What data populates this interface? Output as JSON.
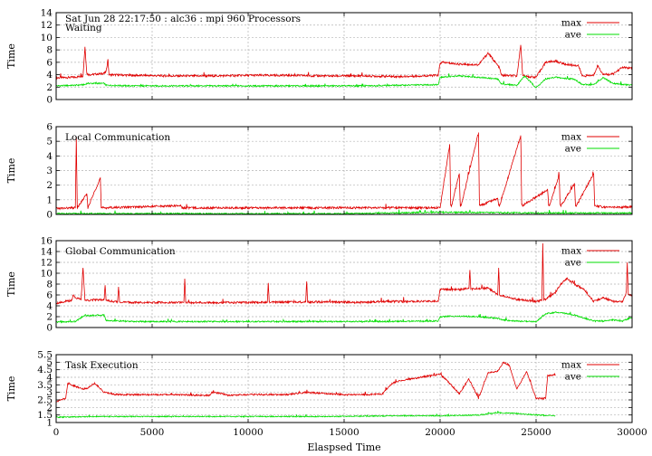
{
  "figure_title": "Sat Jun 28 22:17:50 : alc36 : mpi 960 Processors",
  "chart_data": [
    {
      "type": "line",
      "title": "Waiting",
      "ylabel": "Time",
      "xlabel": "",
      "xlim": [
        0,
        30000
      ],
      "ylim": [
        0,
        14
      ],
      "yticks": [
        0,
        2,
        4,
        6,
        8,
        10,
        12,
        14
      ],
      "xticks": [
        0,
        5000,
        10000,
        15000,
        20000,
        25000,
        30000
      ],
      "show_x_tick_labels": false,
      "grid": true,
      "legend": "top-right",
      "colors": {
        "max": "#e00000",
        "ave": "#00dd00"
      },
      "series": [
        {
          "name": "max",
          "x": [
            0,
            1000,
            1400,
            1500,
            1600,
            1700,
            2500,
            2600,
            2700,
            2750,
            4000,
            6000,
            8000,
            10000,
            12000,
            14000,
            16000,
            18000,
            19000,
            19900,
            20000,
            20100,
            21000,
            22000,
            22500,
            23000,
            23100,
            23200,
            24000,
            24200,
            24300,
            24400,
            24500,
            25000,
            25500,
            26000,
            26500,
            27000,
            27200,
            27400,
            28000,
            28200,
            28500,
            29000,
            29500,
            30000
          ],
          "values": [
            3.5,
            3.6,
            3.8,
            8.5,
            4.2,
            4.0,
            4.2,
            4.5,
            6.5,
            4.0,
            3.9,
            3.8,
            3.8,
            3.9,
            3.9,
            3.8,
            3.8,
            3.7,
            3.8,
            3.9,
            5.8,
            6.0,
            5.7,
            5.6,
            7.5,
            5.5,
            5.0,
            3.9,
            3.8,
            8.8,
            4.0,
            3.8,
            3.7,
            3.6,
            6.0,
            6.2,
            5.7,
            5.5,
            5.5,
            3.8,
            3.9,
            5.5,
            4.0,
            4.1,
            5.2,
            5.0
          ]
        },
        {
          "name": "ave",
          "x": [
            0,
            1000,
            1500,
            1600,
            2500,
            2600,
            4000,
            8000,
            12000,
            16000,
            18000,
            19900,
            20000,
            21000,
            22000,
            23000,
            23200,
            24000,
            24400,
            25000,
            25500,
            26000,
            26500,
            27000,
            27400,
            28000,
            28500,
            29000,
            30000
          ],
          "values": [
            2.2,
            2.3,
            2.4,
            2.6,
            2.6,
            2.3,
            2.2,
            2.2,
            2.2,
            2.2,
            2.3,
            2.4,
            3.6,
            3.8,
            3.6,
            3.3,
            2.5,
            2.3,
            3.8,
            1.9,
            3.3,
            3.6,
            3.4,
            3.3,
            2.4,
            2.4,
            3.5,
            2.6,
            2.3
          ]
        }
      ]
    },
    {
      "type": "line",
      "title": "Local Communication",
      "ylabel": "Time",
      "xlabel": "",
      "xlim": [
        0,
        30000
      ],
      "ylim": [
        0,
        6
      ],
      "yticks": [
        0,
        1,
        2,
        3,
        4,
        5,
        6
      ],
      "xticks": [
        0,
        5000,
        10000,
        15000,
        20000,
        25000,
        30000
      ],
      "show_x_tick_labels": false,
      "grid": true,
      "legend": "top-right",
      "colors": {
        "max": "#e00000",
        "ave": "#00dd00"
      },
      "series": [
        {
          "name": "max",
          "x": [
            0,
            1000,
            1050,
            1100,
            1600,
            1650,
            2300,
            2350,
            2400,
            6500,
            6550,
            6600,
            20000,
            20500,
            20550,
            20600,
            21000,
            21050,
            21100,
            22000,
            22050,
            22100,
            23000,
            23050,
            23100,
            24200,
            24250,
            24300,
            25600,
            25650,
            25700,
            26200,
            26250,
            26300,
            27000,
            27050,
            27100,
            28000,
            28050,
            28100,
            28500,
            28550,
            28600,
            29000,
            30000
          ],
          "values": [
            0.4,
            0.45,
            5.3,
            0.45,
            1.4,
            0.45,
            2.5,
            0.45,
            0.45,
            0.6,
            0.45,
            0.45,
            0.45,
            4.8,
            0.6,
            0.6,
            2.8,
            0.6,
            0.6,
            5.6,
            0.6,
            0.6,
            1.1,
            0.6,
            0.6,
            5.4,
            0.7,
            0.6,
            1.7,
            0.6,
            0.6,
            2.7,
            0.7,
            0.6,
            2.1,
            0.6,
            0.6,
            2.8,
            0.6,
            0.6,
            0.5,
            0.5,
            0.5,
            0.5,
            0.5
          ]
        },
        {
          "name": "ave",
          "x": [
            0,
            5000,
            10000,
            15000,
            20000,
            25000,
            30000
          ],
          "values": [
            0.05,
            0.05,
            0.05,
            0.05,
            0.15,
            0.1,
            0.1
          ]
        }
      ]
    },
    {
      "type": "line",
      "title": "Global Communication",
      "ylabel": "Time",
      "xlabel": "",
      "xlim": [
        0,
        30000
      ],
      "ylim": [
        0,
        16
      ],
      "yticks": [
        0,
        2,
        4,
        6,
        8,
        10,
        12,
        14,
        16
      ],
      "xticks": [
        0,
        5000,
        10000,
        15000,
        20000,
        25000,
        30000
      ],
      "show_x_tick_labels": false,
      "grid": true,
      "legend": "top-right",
      "colors": {
        "max": "#e00000",
        "ave": "#00dd00"
      },
      "series": [
        {
          "name": "max",
          "x": [
            0,
            800,
            900,
            1000,
            1300,
            1400,
            1500,
            2500,
            2550,
            2600,
            3200,
            3250,
            3300,
            4000,
            6000,
            6650,
            6700,
            6750,
            8000,
            10000,
            11000,
            11050,
            11100,
            13000,
            13050,
            13100,
            15000,
            16000,
            17000,
            18000,
            19900,
            20000,
            21000,
            21500,
            21550,
            21600,
            22500,
            23000,
            23050,
            23100,
            24000,
            25000,
            25300,
            25350,
            25400,
            26000,
            26300,
            26600,
            27000,
            27500,
            28000,
            28500,
            29000,
            29500,
            29700,
            29750,
            29800,
            30000
          ],
          "values": [
            4.5,
            5.0,
            6.0,
            5.5,
            5.2,
            11.0,
            5.0,
            5.2,
            7.8,
            5.0,
            4.7,
            7.5,
            4.7,
            4.6,
            4.6,
            4.6,
            9.0,
            4.6,
            4.6,
            4.6,
            4.7,
            8.2,
            4.7,
            4.7,
            8.5,
            4.7,
            4.7,
            4.6,
            4.8,
            4.8,
            4.8,
            7.0,
            7.0,
            7.2,
            10.6,
            7.1,
            7.3,
            6.0,
            11.0,
            6.0,
            5.2,
            4.8,
            5.0,
            15.5,
            5.0,
            6.5,
            8.0,
            9.0,
            8.0,
            7.0,
            4.8,
            5.5,
            4.8,
            4.7,
            6.5,
            12.0,
            6.0,
            6.0
          ]
        },
        {
          "name": "ave",
          "x": [
            0,
            1000,
            1500,
            1600,
            2500,
            2600,
            4000,
            8000,
            12000,
            16000,
            19900,
            20000,
            21000,
            22000,
            23000,
            23200,
            24000,
            25000,
            25500,
            26000,
            26500,
            27000,
            28000,
            28500,
            29000,
            29500,
            30000
          ],
          "values": [
            1.0,
            1.1,
            2.3,
            2.2,
            2.3,
            1.3,
            1.1,
            1.1,
            1.1,
            1.1,
            1.2,
            2.0,
            2.1,
            2.0,
            1.7,
            1.4,
            1.2,
            1.1,
            2.5,
            2.8,
            2.6,
            2.3,
            1.2,
            1.2,
            1.4,
            1.2,
            1.9
          ]
        }
      ]
    },
    {
      "type": "line",
      "title": "Task Execution",
      "ylabel": "Time",
      "xlabel": "Elaspsed Time",
      "xlim": [
        0,
        30000
      ],
      "ylim": [
        1,
        5.5
      ],
      "yticks": [
        1,
        1.5,
        2,
        2.5,
        3,
        3.5,
        4,
        4.5,
        5,
        5.5
      ],
      "ytick_labels": [
        "1",
        "1.5",
        "2",
        "2.5",
        "3",
        "3.5",
        "4",
        "4.5",
        "5",
        "5.5"
      ],
      "xticks": [
        0,
        5000,
        10000,
        15000,
        20000,
        25000,
        30000
      ],
      "xtick_labels": [
        "0",
        "5000",
        "10000",
        "15000",
        "20000",
        "25000",
        "30000"
      ],
      "show_x_tick_labels": true,
      "grid": true,
      "legend": "top-right",
      "colors": {
        "max": "#e00000",
        "ave": "#00dd00"
      },
      "series": [
        {
          "name": "max",
          "x": [
            0,
            500,
            600,
            1000,
            1500,
            2000,
            2100,
            2500,
            3000,
            3100,
            4000,
            6000,
            8000,
            8100,
            8500,
            9000,
            10000,
            12000,
            13000,
            15000,
            16000,
            17000,
            17500,
            18000,
            18500,
            19000,
            19500,
            20000,
            20500,
            21000,
            21500,
            22000,
            22500,
            23000,
            23300,
            23600,
            24000,
            24500,
            25000,
            25500,
            25600,
            26000
          ],
          "values": [
            2.4,
            2.6,
            3.6,
            3.4,
            3.2,
            3.6,
            3.5,
            3.0,
            2.9,
            2.85,
            2.85,
            2.85,
            2.8,
            3.0,
            2.95,
            2.8,
            2.85,
            2.85,
            3.0,
            2.85,
            2.85,
            2.9,
            3.6,
            3.8,
            3.9,
            4.0,
            4.1,
            4.2,
            3.6,
            2.9,
            3.9,
            2.6,
            4.3,
            4.4,
            5.0,
            4.8,
            3.2,
            4.4,
            2.6,
            2.6,
            4.1,
            4.2
          ]
        },
        {
          "name": "ave",
          "x": [
            0,
            2000,
            6000,
            10000,
            14000,
            18000,
            20000,
            22000,
            23000,
            24000,
            25000,
            26000
          ],
          "values": [
            1.35,
            1.4,
            1.4,
            1.4,
            1.4,
            1.45,
            1.45,
            1.5,
            1.65,
            1.6,
            1.5,
            1.45
          ]
        }
      ]
    }
  ]
}
